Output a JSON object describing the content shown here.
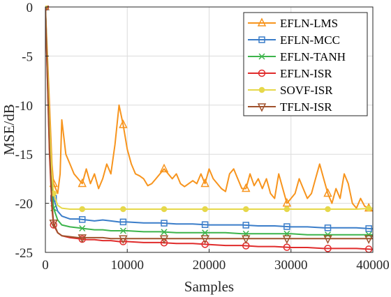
{
  "chart_data": {
    "type": "line",
    "xlabel": "Samples",
    "ylabel": "MSE/dB",
    "xlim": [
      0,
      40000
    ],
    "ylim": [
      -25,
      0
    ],
    "xticks": [
      0,
      10000,
      20000,
      30000,
      40000
    ],
    "xtick_labels": [
      "0",
      "10000",
      "20000",
      "30000",
      "40000"
    ],
    "yticks": [
      0,
      -5,
      -10,
      -15,
      -20,
      -25
    ],
    "ytick_labels": [
      "0",
      "-5",
      "-10",
      "-15",
      "-20",
      "-25"
    ],
    "grid": true,
    "legend_position": "top-right",
    "series": [
      {
        "name": "EFLN-LMS",
        "color": "#f7941d",
        "marker": "triangle-up",
        "x": [
          0,
          500,
          800,
          1000,
          1500,
          1800,
          2000,
          2500,
          3000,
          3500,
          4000,
          4500,
          5000,
          5500,
          6000,
          6500,
          7000,
          7500,
          8000,
          8500,
          9000,
          9500,
          10000,
          10500,
          11000,
          11500,
          12000,
          12500,
          13000,
          13500,
          14000,
          14500,
          15000,
          15500,
          16000,
          16500,
          17000,
          17500,
          18000,
          18500,
          19000,
          19500,
          20000,
          20500,
          21000,
          21500,
          22000,
          22500,
          23000,
          23500,
          24000,
          24500,
          25000,
          25500,
          26000,
          26500,
          27000,
          27500,
          28000,
          28500,
          29000,
          29500,
          30000,
          30500,
          31000,
          31500,
          32000,
          32500,
          33000,
          33500,
          34000,
          34500,
          35000,
          35500,
          36000,
          36500,
          37000,
          37500,
          38000,
          38500,
          39000,
          39500,
          40000
        ],
        "y": [
          0,
          -10,
          -16,
          -18,
          -19,
          -17,
          -11.5,
          -15,
          -16,
          -17,
          -17.5,
          -18,
          -16.5,
          -18,
          -17,
          -18.5,
          -17.5,
          -16,
          -17,
          -14,
          -10,
          -12,
          -14.5,
          -16,
          -17,
          -17.2,
          -17.5,
          -18.2,
          -18,
          -17.5,
          -17,
          -16.5,
          -17,
          -17.5,
          -17,
          -18,
          -18.3,
          -18,
          -17.7,
          -18,
          -17,
          -18,
          -16.5,
          -17.5,
          -18,
          -18.5,
          -18.8,
          -17,
          -16.5,
          -17.5,
          -18.5,
          -18.5,
          -17,
          -18.2,
          -17.5,
          -18.5,
          -17.5,
          -19,
          -19.5,
          -17,
          -18.5,
          -20,
          -19.5,
          -19,
          -17.5,
          -18.5,
          -19.5,
          -19,
          -17.5,
          -16,
          -17.5,
          -19,
          -20,
          -18.5,
          -19.5,
          -17,
          -18,
          -20,
          -20.5,
          -19.5,
          -20.3,
          -20.5,
          -20.8
        ]
      },
      {
        "name": "EFLN-MCC",
        "color": "#3a7dc9",
        "marker": "square",
        "x": [
          0,
          500,
          800,
          1000,
          1500,
          2000,
          3000,
          4000,
          5000,
          6000,
          7000,
          8000,
          9000,
          10000,
          12000,
          14000,
          16000,
          18000,
          20000,
          22000,
          24000,
          26000,
          28000,
          30000,
          32000,
          34000,
          36000,
          38000,
          40000
        ],
        "y": [
          0,
          -12,
          -17.5,
          -19.5,
          -20.8,
          -21.3,
          -21.6,
          -21.6,
          -21.7,
          -21.8,
          -21.7,
          -21.8,
          -21.9,
          -21.9,
          -22.0,
          -22.0,
          -22.1,
          -22.1,
          -22.2,
          -22.2,
          -22.2,
          -22.3,
          -22.3,
          -22.4,
          -22.4,
          -22.5,
          -22.5,
          -22.5,
          -22.6
        ]
      },
      {
        "name": "EFLN-TANH",
        "color": "#3cb44b",
        "marker": "x",
        "x": [
          0,
          500,
          800,
          1000,
          1500,
          2000,
          3000,
          4000,
          5000,
          6000,
          7000,
          8000,
          9000,
          10000,
          12000,
          14000,
          16000,
          18000,
          20000,
          22000,
          24000,
          26000,
          28000,
          30000,
          32000,
          34000,
          36000,
          38000,
          40000
        ],
        "y": [
          0,
          -13,
          -18.5,
          -20.5,
          -21.7,
          -22.2,
          -22.4,
          -22.5,
          -22.6,
          -22.7,
          -22.7,
          -22.8,
          -22.8,
          -22.8,
          -22.9,
          -22.9,
          -23.0,
          -23.0,
          -23.0,
          -23.0,
          -23.1,
          -23.1,
          -23.1,
          -23.1,
          -23.2,
          -23.2,
          -23.2,
          -23.2,
          -23.2
        ]
      },
      {
        "name": "EFLN-ISR",
        "color": "#e02b2b",
        "marker": "circle",
        "x": [
          0,
          500,
          800,
          1000,
          1500,
          2000,
          3000,
          4000,
          5000,
          6000,
          7000,
          8000,
          9000,
          10000,
          12000,
          14000,
          16000,
          18000,
          20000,
          22000,
          24000,
          26000,
          28000,
          30000,
          32000,
          34000,
          36000,
          38000,
          40000
        ],
        "y": [
          0,
          -15,
          -20.5,
          -22.2,
          -23.0,
          -23.3,
          -23.5,
          -23.6,
          -23.7,
          -23.7,
          -23.8,
          -23.8,
          -23.9,
          -23.9,
          -24.0,
          -24.0,
          -24.1,
          -24.1,
          -24.2,
          -24.3,
          -24.3,
          -24.4,
          -24.4,
          -24.5,
          -24.5,
          -24.6,
          -24.6,
          -24.6,
          -24.7
        ]
      },
      {
        "name": "SOVF-ISR",
        "color": "#e6d84a",
        "marker": "circle-filled",
        "x": [
          0,
          500,
          800,
          1000,
          1500,
          2000,
          3000,
          4000,
          5000,
          6000,
          8000,
          10000,
          12000,
          14000,
          16000,
          18000,
          20000,
          22000,
          24000,
          26000,
          28000,
          30000,
          32000,
          34000,
          36000,
          38000,
          40000
        ],
        "y": [
          0,
          -12,
          -17,
          -19,
          -20.2,
          -20.5,
          -20.6,
          -20.6,
          -20.6,
          -20.6,
          -20.6,
          -20.6,
          -20.6,
          -20.6,
          -20.6,
          -20.6,
          -20.6,
          -20.6,
          -20.6,
          -20.6,
          -20.6,
          -20.6,
          -20.6,
          -20.6,
          -20.6,
          -20.6,
          -20.5
        ]
      },
      {
        "name": "TFLN-ISR",
        "color": "#a0522d",
        "marker": "triangle-down",
        "x": [
          0,
          500,
          800,
          1000,
          1500,
          2000,
          3000,
          4000,
          5000,
          6000,
          7000,
          8000,
          9000,
          10000,
          12000,
          14000,
          16000,
          18000,
          20000,
          22000,
          24000,
          26000,
          28000,
          30000,
          32000,
          34000,
          36000,
          38000,
          40000
        ],
        "y": [
          0,
          -14.5,
          -20,
          -22,
          -23,
          -23.3,
          -23.4,
          -23.5,
          -23.5,
          -23.5,
          -23.5,
          -23.6,
          -23.6,
          -23.6,
          -23.6,
          -23.6,
          -23.6,
          -23.6,
          -23.6,
          -23.6,
          -23.6,
          -23.6,
          -23.6,
          -23.6,
          -23.6,
          -23.6,
          -23.6,
          -23.6,
          -23.6
        ]
      }
    ]
  }
}
